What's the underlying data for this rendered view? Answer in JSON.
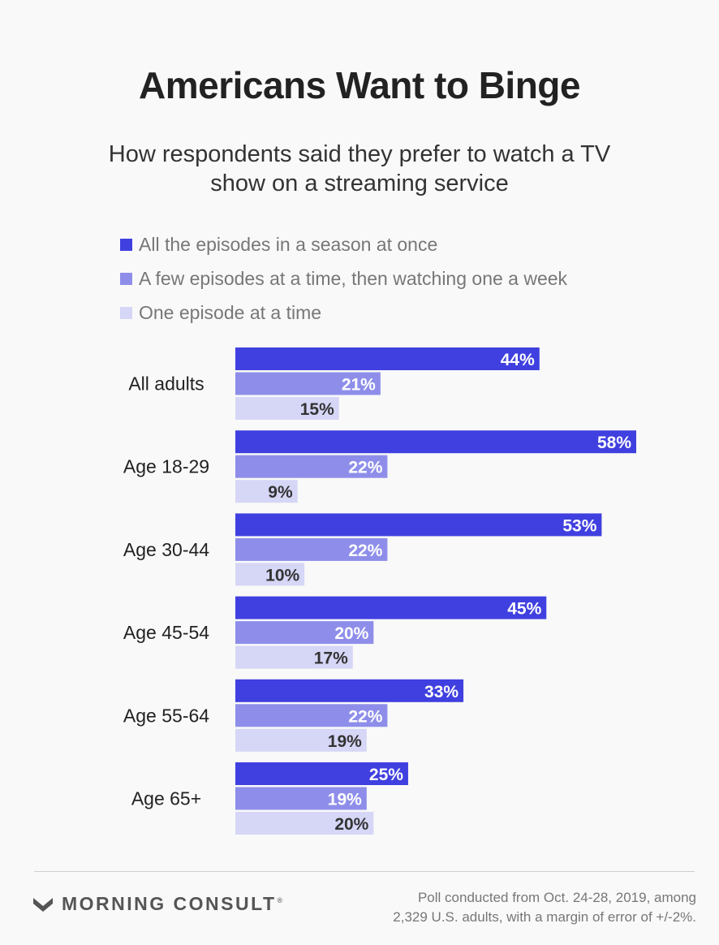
{
  "chart_data": {
    "type": "bar",
    "orientation": "horizontal",
    "title": "Americans Want to Binge",
    "subtitle": "How respondents said they prefer to watch a TV show on a streaming service",
    "categories": [
      "All adults",
      "Age 18-29",
      "Age 30-44",
      "Age 45-54",
      "Age 55-64",
      "Age 65+"
    ],
    "series": [
      {
        "name": "All the episodes in a season at once",
        "color": "#4040e0",
        "label_color": "#ffffff",
        "values": [
          44,
          58,
          53,
          45,
          33,
          25
        ]
      },
      {
        "name": "A few episodes at a time, then watching one a week",
        "color": "#8e8eea",
        "label_color": "#ffffff",
        "values": [
          21,
          22,
          22,
          20,
          22,
          19
        ]
      },
      {
        "name": "One episode at a time",
        "color": "#d6d6f7",
        "label_color": "#333333",
        "values": [
          15,
          9,
          10,
          17,
          19,
          20
        ]
      }
    ],
    "value_suffix": "%",
    "xlim": [
      0,
      58
    ]
  },
  "footer": {
    "brand": "MORNING CONSULT",
    "brand_mark": "®",
    "note_line1": "Poll conducted from Oct. 24-28, 2019, among",
    "note_line2": "2,329 U.S. adults, with a margin of error of +/-2%."
  }
}
